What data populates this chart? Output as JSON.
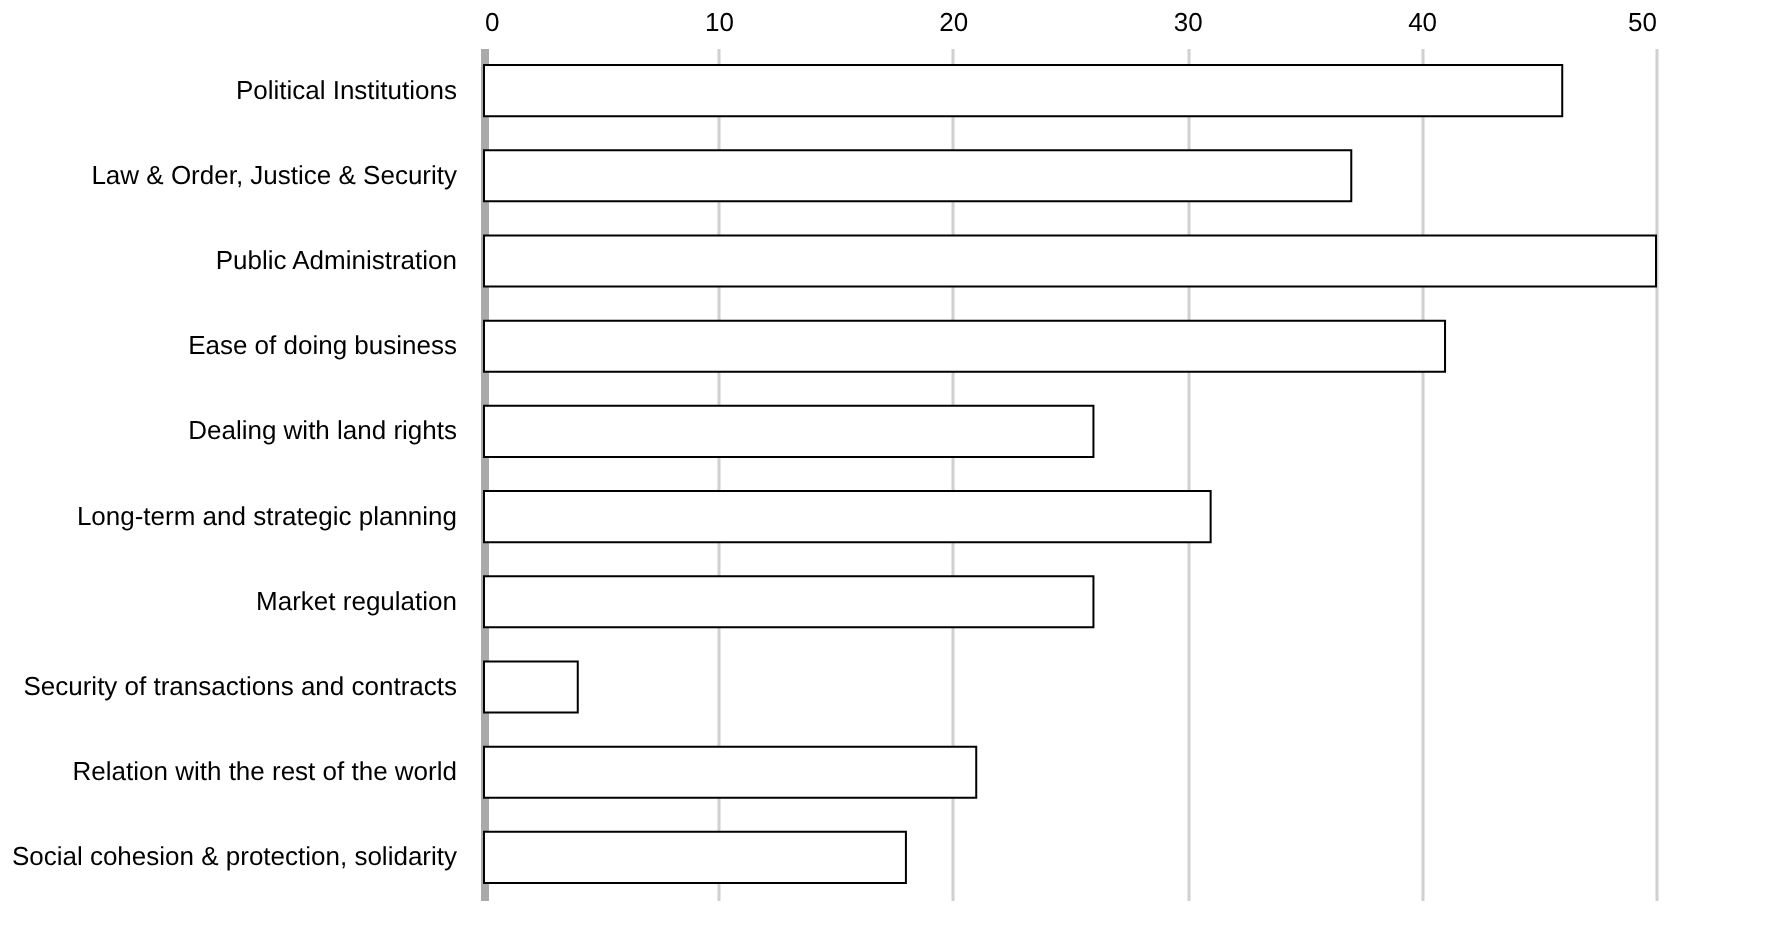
{
  "chart_data": {
    "type": "bar",
    "orientation": "horizontal",
    "categories": [
      "Political Institutions",
      "Law & Order, Justice & Security",
      "Public Administration",
      "Ease of doing business",
      "Dealing with land rights",
      "Long-term and strategic planning",
      "Market regulation",
      "Security of transactions and contracts",
      "Relation with the rest of the world",
      "Social cohesion & protection, solidarity"
    ],
    "values": [
      46,
      37,
      50,
      41,
      26,
      31,
      26,
      4,
      21,
      18
    ],
    "color": "#ffffff",
    "xlim": [
      0,
      50
    ],
    "xticks": [
      0,
      10,
      20,
      30,
      40,
      50
    ],
    "grid": "x"
  }
}
